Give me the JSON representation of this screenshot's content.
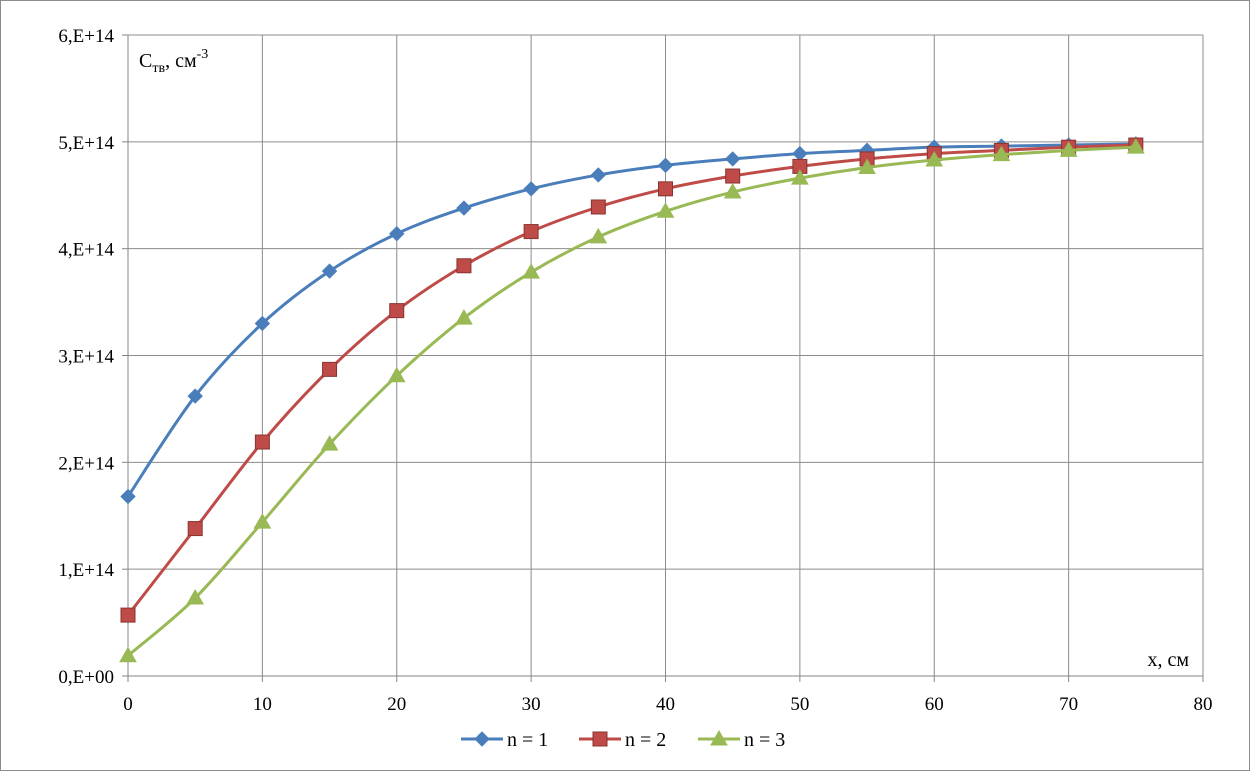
{
  "chart_data": {
    "type": "line",
    "title": "",
    "xlabel": "x, см",
    "ylabel": {
      "main": "C",
      "sub": "тв",
      "unit": ", см",
      "sup": "-3"
    },
    "xlim": [
      0,
      80
    ],
    "ylim": [
      0,
      600000000000000.0
    ],
    "x_ticks": [
      0,
      10,
      20,
      30,
      40,
      50,
      60,
      70,
      80
    ],
    "x_tick_labels": [
      "0",
      "10",
      "20",
      "30",
      "40",
      "50",
      "60",
      "70",
      "80"
    ],
    "y_ticks": [
      0,
      100000000000000.0,
      200000000000000.0,
      300000000000000.0,
      400000000000000.0,
      500000000000000.0,
      600000000000000.0
    ],
    "y_tick_labels": [
      "0,E+00",
      "1,E+14",
      "2,E+14",
      "3,E+14",
      "4,E+14",
      "5,E+14",
      "6,E+14"
    ],
    "grid": true,
    "legend_position": "bottom",
    "x": [
      0,
      5,
      10,
      15,
      20,
      25,
      30,
      35,
      40,
      45,
      50,
      55,
      60,
      65,
      70,
      75
    ],
    "series": [
      {
        "name": "n = 1",
        "color": "#4a7ebb",
        "marker": "diamond",
        "values": [
          168000000000000.0,
          262000000000000.0,
          330000000000000.0,
          379000000000000.0,
          414000000000000.0,
          438000000000000.0,
          456000000000000.0,
          469000000000000.0,
          478000000000000.0,
          484000000000000.0,
          489000000000000.0,
          492000000000000.0,
          495000000000000.0,
          496000000000000.0,
          497000000000000.0,
          498000000000000.0
        ]
      },
      {
        "name": "n = 2",
        "color": "#be4b48",
        "marker": "square",
        "values": [
          57000000000000.0,
          138000000000000.0,
          219000000000000.0,
          287000000000000.0,
          342000000000000.0,
          384000000000000.0,
          416000000000000.0,
          439000000000000.0,
          456000000000000.0,
          468000000000000.0,
          477000000000000.0,
          484000000000000.0,
          489000000000000.0,
          492000000000000.0,
          495000000000000.0,
          497000000000000.0
        ]
      },
      {
        "name": "n = 3",
        "color": "#98b954",
        "marker": "triangle",
        "values": [
          19000000000000.0,
          73000000000000.0,
          144000000000000.0,
          217000000000000.0,
          281000000000000.0,
          335000000000000.0,
          378000000000000.0,
          411000000000000.0,
          435000000000000.0,
          453000000000000.0,
          466000000000000.0,
          476000000000000.0,
          483000000000000.0,
          488000000000000.0,
          492000000000000.0,
          495000000000000.0
        ]
      }
    ]
  }
}
